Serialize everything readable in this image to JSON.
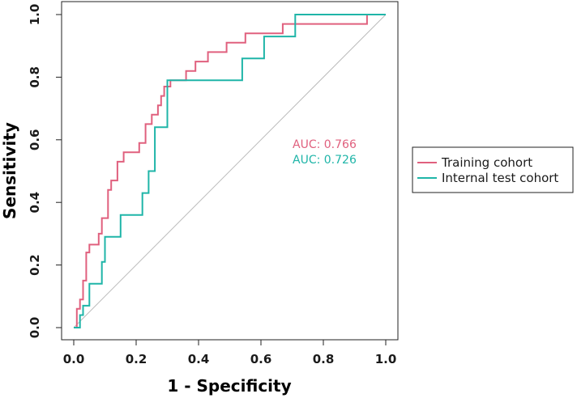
{
  "chart_data": {
    "type": "line",
    "title": "",
    "xlabel": "1 - Specificity",
    "ylabel": "Sensitivity",
    "xlim": [
      0,
      1
    ],
    "ylim": [
      0,
      1
    ],
    "x_ticks": [
      "0.0",
      "0.2",
      "0.4",
      "0.6",
      "0.8",
      "1.0"
    ],
    "y_ticks": [
      "0.0",
      "0.2",
      "0.4",
      "0.6",
      "0.8",
      "1.0"
    ],
    "reference_line": {
      "x": [
        0,
        1
      ],
      "y": [
        0,
        1
      ],
      "color": "#bbbbbb"
    },
    "series": [
      {
        "name": "Training cohort",
        "color": "#e0607e",
        "auc_label": "AUC: 0.766",
        "x": [
          0,
          0.01,
          0.01,
          0.02,
          0.02,
          0.03,
          0.03,
          0.04,
          0.04,
          0.05,
          0.05,
          0.08,
          0.08,
          0.09,
          0.09,
          0.11,
          0.11,
          0.12,
          0.12,
          0.14,
          0.14,
          0.16,
          0.16,
          0.21,
          0.21,
          0.23,
          0.23,
          0.25,
          0.25,
          0.27,
          0.27,
          0.28,
          0.28,
          0.29,
          0.29,
          0.31,
          0.31,
          0.36,
          0.36,
          0.39,
          0.39,
          0.43,
          0.43,
          0.49,
          0.49,
          0.55,
          0.55,
          0.61,
          0.61,
          0.67,
          0.67,
          0.7,
          0.7,
          0.94,
          0.94,
          1.0
        ],
        "y": [
          0,
          0,
          0.06,
          0.06,
          0.09,
          0.09,
          0.15,
          0.15,
          0.24,
          0.24,
          0.265,
          0.265,
          0.3,
          0.3,
          0.35,
          0.35,
          0.44,
          0.44,
          0.47,
          0.47,
          0.53,
          0.53,
          0.56,
          0.56,
          0.59,
          0.59,
          0.65,
          0.65,
          0.68,
          0.68,
          0.71,
          0.71,
          0.74,
          0.74,
          0.77,
          0.77,
          0.79,
          0.79,
          0.82,
          0.82,
          0.85,
          0.85,
          0.88,
          0.88,
          0.91,
          0.91,
          0.94,
          0.94,
          0.94,
          0.94,
          0.97,
          0.97,
          0.97,
          0.97,
          1.0,
          1.0
        ]
      },
      {
        "name": "Internal test cohort",
        "color": "#1fb5a8",
        "auc_label": "AUC: 0.726",
        "x": [
          0,
          0.02,
          0.02,
          0.03,
          0.03,
          0.05,
          0.05,
          0.09,
          0.09,
          0.1,
          0.1,
          0.15,
          0.15,
          0.22,
          0.22,
          0.24,
          0.24,
          0.26,
          0.26,
          0.3,
          0.3,
          0.54,
          0.54,
          0.61,
          0.61,
          0.71,
          0.71,
          1.0
        ],
        "y": [
          0,
          0,
          0.04,
          0.04,
          0.07,
          0.07,
          0.14,
          0.14,
          0.21,
          0.21,
          0.29,
          0.29,
          0.36,
          0.36,
          0.43,
          0.43,
          0.5,
          0.5,
          0.64,
          0.64,
          0.79,
          0.79,
          0.86,
          0.86,
          0.93,
          0.93,
          1.0,
          1.0
        ]
      }
    ],
    "legend": {
      "position": "right",
      "entries": [
        "Training cohort",
        "Internal test cohort"
      ]
    }
  }
}
